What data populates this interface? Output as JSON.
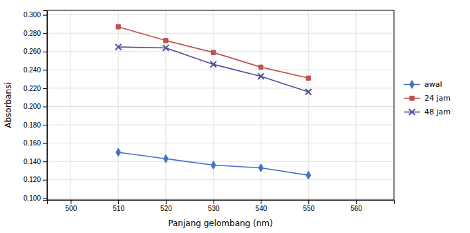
{
  "chart_data": {
    "type": "line",
    "xlabel": "Panjang gelombang (nm)",
    "ylabel": "Absorbansi",
    "x": [
      510,
      520,
      530,
      540,
      550
    ],
    "series": [
      {
        "name": "awal",
        "color": "#4472C4",
        "marker": "diamond",
        "values": [
          0.15,
          0.143,
          0.136,
          0.133,
          0.125
        ]
      },
      {
        "name": "24 jam",
        "color": "#C0504D",
        "marker": "square",
        "values": [
          0.287,
          0.272,
          0.259,
          0.243,
          0.231
        ]
      },
      {
        "name": "48 jam",
        "color": "#5050A0",
        "marker": "x",
        "values": [
          0.265,
          0.264,
          0.246,
          0.233,
          0.216
        ]
      }
    ],
    "xlim": [
      495,
      568
    ],
    "ylim": [
      0.098,
      0.305
    ],
    "xticks": [
      500,
      510,
      520,
      530,
      540,
      550,
      560
    ],
    "yticks": [
      {
        "value": 0.1,
        "label": "0.100"
      },
      {
        "value": 0.12,
        "label": "0.120"
      },
      {
        "value": 0.14,
        "label": "0.140"
      },
      {
        "value": 0.16,
        "label": "0.160"
      },
      {
        "value": 0.18,
        "label": "0.180"
      },
      {
        "value": 0.2,
        "label": "0.200"
      },
      {
        "value": 0.22,
        "label": "0.220"
      },
      {
        "value": 0.24,
        "label": "0.240"
      },
      {
        "value": 0.26,
        "label": "0.260"
      },
      {
        "value": 0.28,
        "label": "0.280"
      },
      {
        "value": 0.3,
        "label": "0.300"
      }
    ],
    "grid": true,
    "legend": "right"
  }
}
